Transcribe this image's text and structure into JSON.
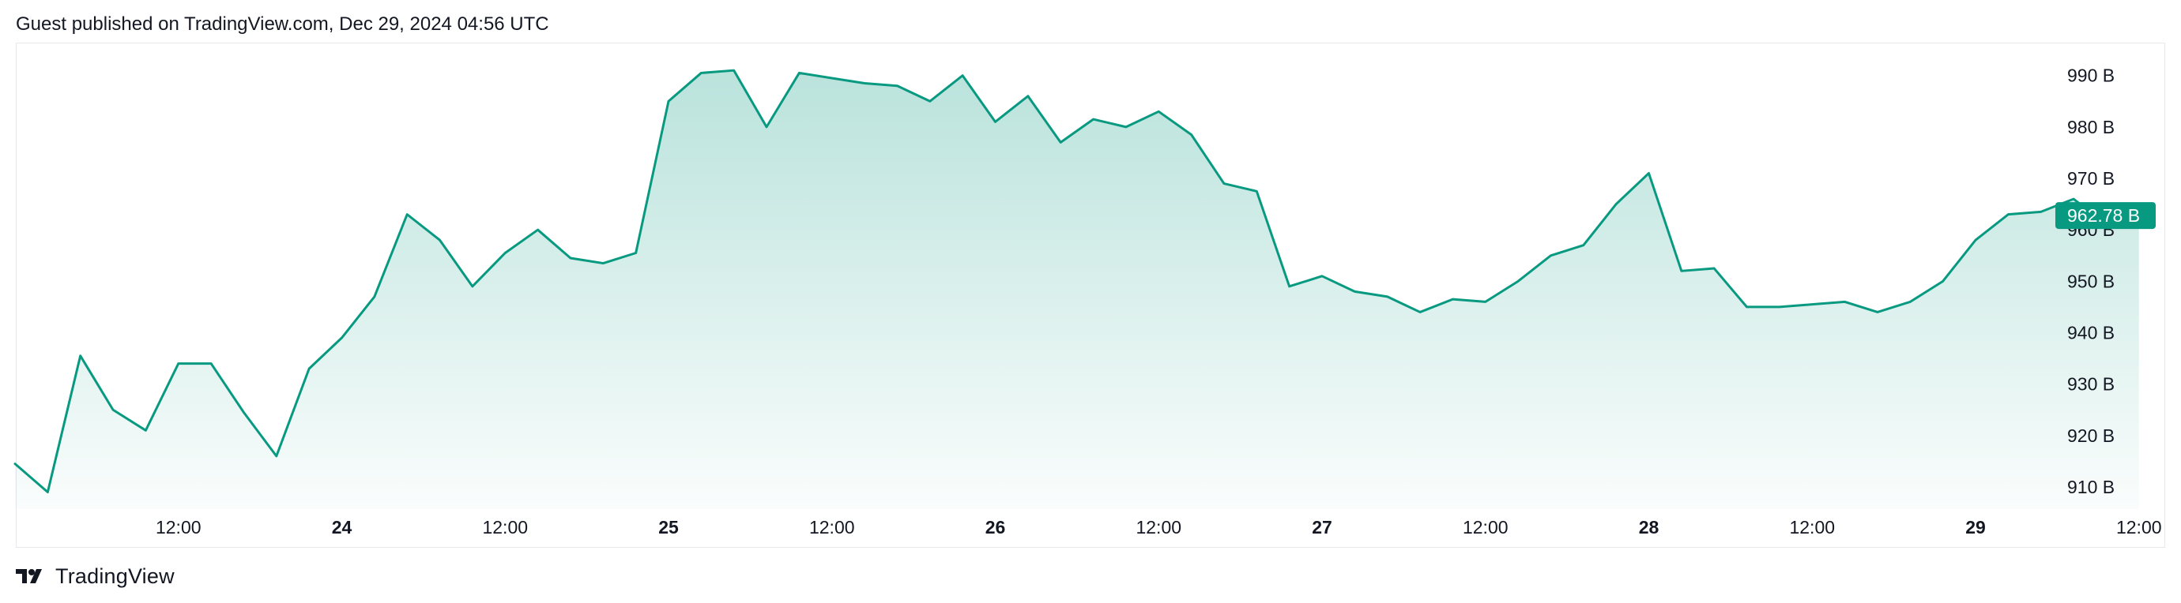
{
  "header": {
    "publish_text": "Guest published on TradingView.com, Dec 29, 2024 04:56 UTC"
  },
  "footer": {
    "logo_text": "TradingView",
    "logo_icon": "tradingview-logo-icon"
  },
  "colors": {
    "line": "#089981",
    "fill_top": "#089981",
    "label_bg": "#089981",
    "grid_border": "#e6e8ec"
  },
  "chart_data": {
    "type": "area",
    "title": "",
    "xlabel": "",
    "ylabel": "",
    "y_unit_suffix": " B",
    "ylim": [
      905.7,
      996.4
    ],
    "y_ticks": [
      910,
      920,
      930,
      940,
      950,
      960,
      970,
      980,
      990
    ],
    "x_ticks": [
      {
        "label": "12:00",
        "t": 0.5,
        "bold": false
      },
      {
        "label": "24",
        "t": 1.0,
        "bold": true
      },
      {
        "label": "12:00",
        "t": 1.5,
        "bold": false
      },
      {
        "label": "25",
        "t": 2.0,
        "bold": true
      },
      {
        "label": "12:00",
        "t": 2.5,
        "bold": false
      },
      {
        "label": "26",
        "t": 3.0,
        "bold": true
      },
      {
        "label": "12:00",
        "t": 3.5,
        "bold": false
      },
      {
        "label": "27",
        "t": 4.0,
        "bold": true
      },
      {
        "label": "12:00",
        "t": 4.5,
        "bold": false
      },
      {
        "label": "28",
        "t": 5.0,
        "bold": true
      },
      {
        "label": "12:00",
        "t": 5.5,
        "bold": false
      },
      {
        "label": "29",
        "t": 6.0,
        "bold": true
      },
      {
        "label": "12:00",
        "t": 6.5,
        "bold": false
      }
    ],
    "last_value_label": "962.78 B",
    "last_value": 962.78,
    "series": [
      {
        "x": [
          0.0,
          0.1,
          0.2,
          0.3,
          0.4,
          0.5,
          0.6,
          0.7,
          0.8,
          0.9,
          1.0,
          1.1,
          1.2,
          1.3,
          1.4,
          1.5,
          1.6,
          1.7,
          1.8,
          1.9,
          2.0,
          2.1,
          2.2,
          2.3,
          2.4,
          2.5,
          2.6,
          2.7,
          2.8,
          2.9,
          3.0,
          3.1,
          3.2,
          3.3,
          3.4,
          3.5,
          3.6,
          3.7,
          3.8,
          3.9,
          4.0,
          4.1,
          4.2,
          4.3,
          4.4,
          4.5,
          4.6,
          4.7,
          4.8,
          4.9,
          5.0,
          5.1,
          5.2,
          5.3,
          5.4,
          5.5,
          5.6,
          5.7,
          5.8,
          5.9,
          6.0,
          6.1,
          6.2,
          6.3,
          6.4,
          6.5
        ],
        "values": [
          914.5,
          909.0,
          935.5,
          925.0,
          921.0,
          934.0,
          934.0,
          924.5,
          916.0,
          933.0,
          939.0,
          947.0,
          963.0,
          958.0,
          949.0,
          955.5,
          960.0,
          954.5,
          953.5,
          955.5,
          985.0,
          990.5,
          991.0,
          980.0,
          990.5,
          989.5,
          988.5,
          988.0,
          985.0,
          990.0,
          981.0,
          986.0,
          977.0,
          981.5,
          980.0,
          983.0,
          978.5,
          969.0,
          967.5,
          949.0,
          951.0,
          948.0,
          947.0,
          944.0,
          946.5,
          946.0,
          950.0,
          955.0,
          957.0,
          965.0,
          971.0,
          952.0,
          952.5,
          945.0,
          945.0,
          945.5,
          946.0,
          944.0,
          946.0,
          950.0,
          958.0,
          963.0,
          963.5,
          966.0,
          961.0,
          962.78
        ]
      }
    ]
  }
}
